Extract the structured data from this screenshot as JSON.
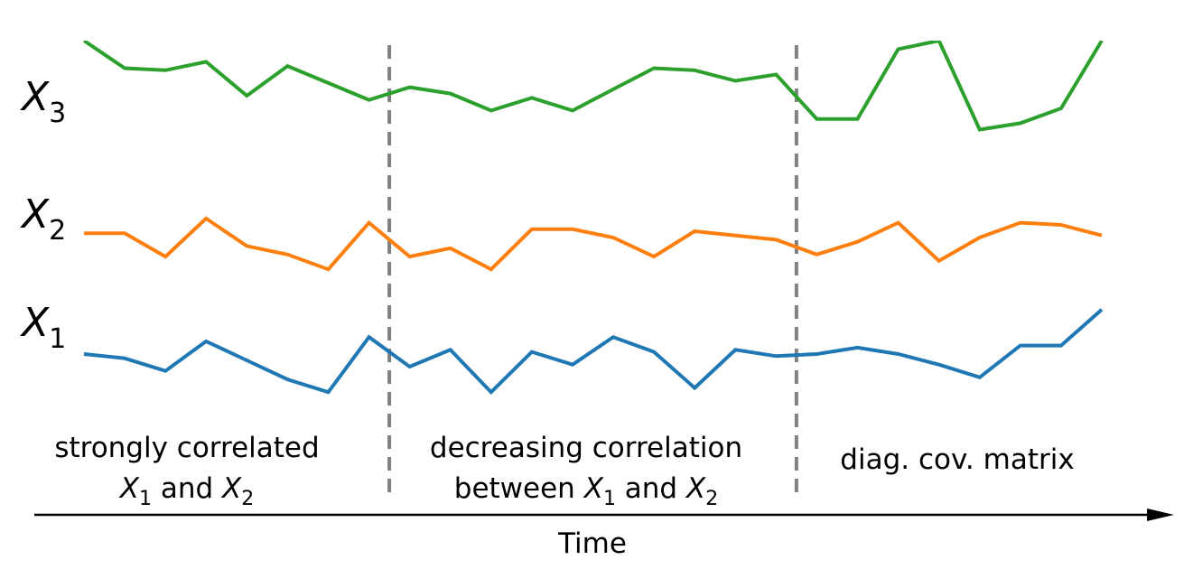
{
  "chart_data": {
    "type": "line",
    "xlabel": "Time",
    "x": [
      0,
      1,
      2,
      3,
      4,
      5,
      6,
      7,
      8,
      9,
      10,
      11,
      12,
      13,
      14,
      15,
      16,
      17,
      18,
      19,
      20,
      21,
      22,
      23,
      24,
      25
    ],
    "series": [
      {
        "name": "X1",
        "label": {
          "var": "X",
          "sub": "1"
        },
        "color": "#1f77b4",
        "values": [
          0.62,
          0.6,
          0.54,
          0.68,
          0.59,
          0.5,
          0.44,
          0.7,
          0.56,
          0.64,
          0.44,
          0.63,
          0.57,
          0.7,
          0.63,
          0.46,
          0.64,
          0.61,
          0.62,
          0.65,
          0.62,
          0.57,
          0.51,
          0.66,
          0.66,
          0.83
        ]
      },
      {
        "name": "X2",
        "label": {
          "var": "X",
          "sub": "2"
        },
        "color": "#ff7f0e",
        "values": [
          1.19,
          1.19,
          1.08,
          1.26,
          1.13,
          1.09,
          1.02,
          1.24,
          1.08,
          1.12,
          1.02,
          1.21,
          1.21,
          1.17,
          1.08,
          1.2,
          1.18,
          1.16,
          1.09,
          1.15,
          1.24,
          1.06,
          1.17,
          1.24,
          1.23,
          1.18
        ]
      },
      {
        "name": "X3",
        "label": {
          "var": "X",
          "sub": "3"
        },
        "color": "#2ca02c",
        "values": [
          2.1,
          1.97,
          1.96,
          2.0,
          1.84,
          1.98,
          1.9,
          1.82,
          1.88,
          1.85,
          1.77,
          1.83,
          1.77,
          1.87,
          1.97,
          1.96,
          1.91,
          1.94,
          1.73,
          1.73,
          2.06,
          2.1,
          1.68,
          1.71,
          1.78,
          2.1
        ]
      }
    ],
    "ylim": [
      0.3,
      2.1
    ],
    "xlim": [
      0,
      25
    ],
    "boundaries": [
      7.5,
      17.5
    ],
    "grid": false,
    "legend": "none",
    "annotations": [
      {
        "lines": [
          [
            {
              "t": "strongly correlated"
            }
          ],
          [
            {
              "t": "X",
              "var": true
            },
            {
              "t": "1",
              "sub": true
            },
            {
              "t": " and "
            },
            {
              "t": "X",
              "var": true
            },
            {
              "t": "2",
              "sub": true
            }
          ]
        ]
      },
      {
        "lines": [
          [
            {
              "t": "decreasing correlation"
            }
          ],
          [
            {
              "t": "between "
            },
            {
              "t": "X",
              "var": true
            },
            {
              "t": "1",
              "sub": true
            },
            {
              "t": " and "
            },
            {
              "t": "X",
              "var": true
            },
            {
              "t": "2",
              "sub": true
            }
          ]
        ]
      },
      {
        "lines": [
          [
            {
              "t": "diag. cov. matrix"
            }
          ]
        ]
      }
    ],
    "colors": {
      "boundary": "#808080",
      "axis": "#000000"
    }
  }
}
